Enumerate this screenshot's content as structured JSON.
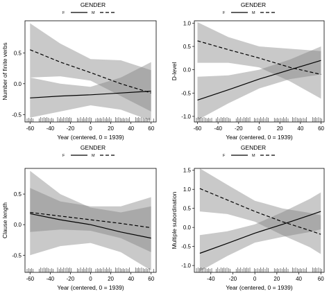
{
  "chart_data": [
    {
      "type": "line",
      "legend_title": "GENDER",
      "legend_entries": [
        {
          "label": "F",
          "line": "solid"
        },
        {
          "label": "M",
          "line": "dashed"
        }
      ],
      "xlabel": "Year (centered, 0 = 1939)",
      "ylabel": "Number of finite verbs",
      "xlim": [
        -65,
        65
      ],
      "ylim": [
        -0.62,
        1.02
      ],
      "xticks": [
        -60,
        -40,
        -20,
        0,
        20,
        40,
        60
      ],
      "yticks": [
        -0.5,
        0.0,
        0.5
      ],
      "ytick_labels": [
        "-0.5",
        "0.0",
        "0.5"
      ],
      "x": [
        -60,
        -30,
        0,
        30,
        60
      ],
      "series": [
        {
          "name": "F",
          "values": [
            -0.23,
            -0.2,
            -0.18,
            -0.15,
            -0.12
          ],
          "lower": [
            -0.55,
            -0.45,
            -0.35,
            -0.42,
            -0.6
          ],
          "upper": [
            0.1,
            0.0,
            -0.05,
            0.1,
            0.35
          ]
        },
        {
          "name": "M",
          "values": [
            0.55,
            0.35,
            0.18,
            0.0,
            -0.15
          ],
          "lower": [
            0.1,
            0.12,
            0.05,
            -0.2,
            -0.45
          ],
          "upper": [
            0.98,
            0.65,
            0.4,
            0.38,
            0.22
          ]
        }
      ]
    },
    {
      "type": "line",
      "legend_title": "GENDER",
      "legend_entries": [
        {
          "label": "F",
          "line": "solid"
        },
        {
          "label": "M",
          "line": "dashed"
        }
      ],
      "xlabel": "Year (centered, 0 = 1939)",
      "ylabel": "D-level",
      "xlim": [
        -63,
        63
      ],
      "ylim": [
        -1.12,
        1.05
      ],
      "xticks": [
        -60,
        -40,
        -20,
        0,
        20,
        40,
        60
      ],
      "yticks": [
        -1.0,
        -0.5,
        0.0,
        0.5,
        1.0
      ],
      "ytick_labels": [
        "-1.0",
        "-0.5",
        "0.0",
        "0.5",
        "1.0"
      ],
      "x": [
        -60,
        -30,
        0,
        30,
        60
      ],
      "series": [
        {
          "name": "F",
          "values": [
            -0.65,
            -0.43,
            -0.2,
            0.0,
            0.2
          ],
          "lower": [
            -1.08,
            -0.72,
            -0.4,
            -0.2,
            -0.1
          ],
          "upper": [
            -0.15,
            -0.12,
            0.0,
            0.22,
            0.5
          ]
        },
        {
          "name": "M",
          "values": [
            0.62,
            0.43,
            0.25,
            0.05,
            -0.1
          ],
          "lower": [
            0.15,
            0.15,
            0.05,
            -0.25,
            -0.62
          ],
          "upper": [
            1.02,
            0.7,
            0.5,
            0.45,
            0.4
          ]
        }
      ]
    },
    {
      "type": "line",
      "legend_title": "GENDER",
      "legend_entries": [
        {
          "label": "F",
          "line": "solid"
        },
        {
          "label": "M",
          "line": "dashed"
        }
      ],
      "xlabel": "Year (centered, 0 = 1939)",
      "ylabel": "Clause length",
      "xlim": [
        -65,
        65
      ],
      "ylim": [
        -0.78,
        0.92
      ],
      "xticks": [
        -60,
        -40,
        -20,
        0,
        20,
        40,
        60
      ],
      "yticks": [
        -0.5,
        0.0,
        0.5
      ],
      "ytick_labels": [
        "-0.5",
        "0.0",
        "0.5"
      ],
      "x": [
        -60,
        -30,
        0,
        30,
        60
      ],
      "series": [
        {
          "name": "F",
          "values": [
            0.18,
            0.08,
            0.0,
            -0.12,
            -0.22
          ],
          "lower": [
            -0.5,
            -0.35,
            -0.3,
            -0.45,
            -0.75
          ],
          "upper": [
            0.88,
            0.5,
            0.28,
            0.2,
            0.3
          ]
        },
        {
          "name": "M",
          "values": [
            0.2,
            0.14,
            0.08,
            0.02,
            -0.05
          ],
          "lower": [
            -0.12,
            -0.08,
            -0.1,
            -0.22,
            -0.45
          ],
          "upper": [
            0.6,
            0.38,
            0.3,
            0.3,
            0.45
          ]
        }
      ]
    },
    {
      "type": "line",
      "legend_title": "GENDER",
      "legend_entries": [
        {
          "label": "F",
          "line": "solid"
        },
        {
          "label": "M",
          "line": "dashed"
        }
      ],
      "xlabel": "Year (centered, 0 = 1939)",
      "ylabel": "Multiple subordination",
      "xlim": [
        -55,
        63
      ],
      "ylim": [
        -1.18,
        1.55
      ],
      "xticks": [
        -40,
        -20,
        0,
        20,
        40,
        60
      ],
      "yticks": [
        -1.0,
        -0.5,
        0.0,
        0.5,
        1.0,
        1.5
      ],
      "ytick_labels": [
        "-1.0",
        "-0.5",
        "0.0",
        "0.5",
        "1.0",
        "1.5"
      ],
      "x": [
        -50,
        -25,
        0,
        25,
        50,
        60
      ],
      "series": [
        {
          "name": "F",
          "values": [
            -0.68,
            -0.42,
            -0.15,
            0.08,
            0.32,
            0.42
          ],
          "lower": [
            -1.15,
            -0.75,
            -0.4,
            -0.25,
            -0.12,
            -0.05
          ],
          "upper": [
            -0.2,
            -0.1,
            0.08,
            0.4,
            0.75,
            0.92
          ]
        },
        {
          "name": "M",
          "values": [
            1.02,
            0.72,
            0.42,
            0.15,
            -0.08,
            -0.18
          ],
          "lower": [
            0.42,
            0.35,
            0.15,
            -0.2,
            -0.52,
            -0.7
          ],
          "upper": [
            1.55,
            1.12,
            0.7,
            0.5,
            0.38,
            0.32
          ]
        }
      ]
    }
  ]
}
